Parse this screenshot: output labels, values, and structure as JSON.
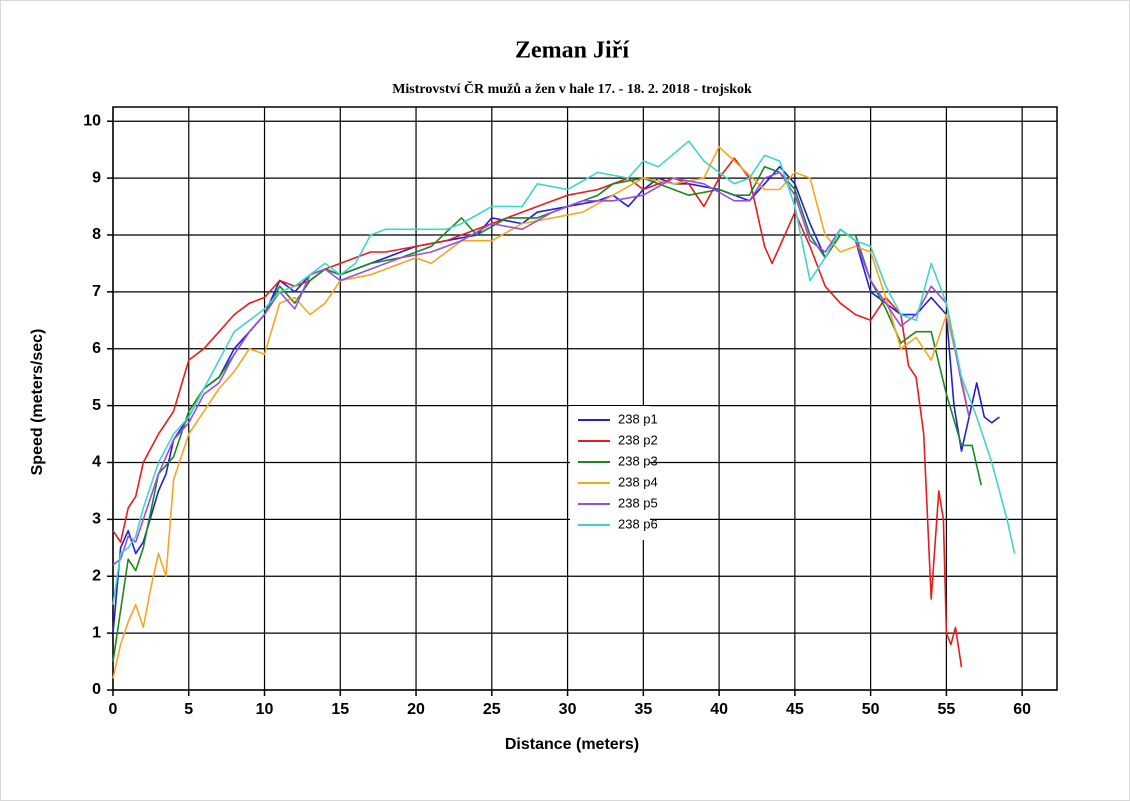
{
  "chart_data": {
    "type": "line",
    "title": "Zeman Jiří",
    "subtitle": "Mistrovství ČR mužů a žen v hale 17. - 18. 2. 2018 - trojskok",
    "x_label": "Distance (meters)",
    "y_label": "Speed (meters/sec)",
    "xlim": [
      0,
      62.3
    ],
    "ylim": [
      0,
      10.25
    ],
    "xticks": [
      0,
      5,
      10,
      15,
      20,
      25,
      30,
      35,
      40,
      45,
      50,
      55,
      60
    ],
    "yticks": [
      0,
      1,
      2,
      3,
      4,
      5,
      6,
      7,
      8,
      9,
      10
    ],
    "grid": true,
    "series": [
      {
        "name": "238 p1",
        "color": "#1f1fe0",
        "x": [
          0,
          0.5,
          1,
          1.5,
          2,
          3,
          3.5,
          4,
          5,
          6,
          7,
          8,
          9,
          10,
          11,
          12,
          13,
          14,
          15,
          17,
          18,
          20,
          22,
          24,
          25,
          27,
          28,
          30,
          32,
          33,
          34,
          35,
          36,
          37,
          38,
          40,
          42,
          43,
          44,
          45,
          46,
          47,
          48,
          49,
          50,
          51,
          52,
          53,
          54,
          55,
          55.5,
          56,
          56.5,
          57,
          57.5,
          58,
          58.5
        ],
        "values": [
          1.0,
          2.5,
          2.8,
          2.4,
          2.6,
          3.5,
          3.8,
          4.4,
          4.8,
          5.3,
          5.5,
          6.0,
          6.3,
          6.6,
          7.2,
          7.0,
          7.3,
          7.4,
          7.3,
          7.5,
          7.6,
          7.8,
          7.9,
          8.0,
          8.3,
          8.2,
          8.4,
          8.5,
          8.6,
          8.7,
          8.5,
          8.8,
          9.0,
          8.9,
          8.9,
          8.8,
          8.6,
          8.9,
          9.2,
          8.9,
          8.2,
          7.6,
          8.1,
          7.9,
          7.0,
          6.8,
          6.6,
          6.6,
          6.9,
          6.6,
          5.0,
          4.2,
          4.8,
          5.4,
          4.8,
          4.7,
          4.8
        ]
      },
      {
        "name": "238 p2",
        "color": "#e81c1c",
        "x": [
          0,
          0.5,
          1,
          1.5,
          2,
          3,
          4,
          5,
          6,
          7,
          8,
          9,
          10,
          11,
          12,
          13,
          14,
          15,
          17,
          18,
          20,
          22,
          24,
          26,
          28,
          30,
          32,
          34,
          35,
          37,
          38,
          39,
          40,
          41,
          42,
          43,
          43.5,
          44,
          45,
          46,
          47,
          48,
          49,
          50,
          51,
          52,
          52.5,
          53,
          53.5,
          54,
          54.5,
          54.8,
          55,
          55.3,
          55.6,
          56
        ],
        "values": [
          2.8,
          2.6,
          3.2,
          3.4,
          4.0,
          4.5,
          4.9,
          5.8,
          6.0,
          6.3,
          6.6,
          6.8,
          6.9,
          7.2,
          7.1,
          7.2,
          7.4,
          7.5,
          7.7,
          7.7,
          7.8,
          7.9,
          8.1,
          8.3,
          8.5,
          8.7,
          8.8,
          9.0,
          8.8,
          9.0,
          8.9,
          8.5,
          9.0,
          9.35,
          9.0,
          7.8,
          7.5,
          7.8,
          8.4,
          7.8,
          7.1,
          6.8,
          6.6,
          6.5,
          6.9,
          6.6,
          5.7,
          5.5,
          4.5,
          1.6,
          3.5,
          3.0,
          1.0,
          0.8,
          1.1,
          0.4
        ]
      },
      {
        "name": "238 p3",
        "color": "#1a8a1a",
        "x": [
          0,
          0.5,
          1,
          1.5,
          2,
          3,
          4,
          5,
          6,
          7,
          8,
          9,
          10,
          11,
          12,
          13,
          14,
          15,
          17,
          19,
          21,
          23,
          24,
          26,
          28,
          30,
          32,
          33,
          35,
          37,
          38,
          40,
          41,
          42,
          43,
          44,
          45,
          46,
          47,
          48,
          49,
          50,
          51,
          52,
          53,
          54,
          55,
          56,
          56.7,
          57.3
        ],
        "values": [
          0.5,
          1.4,
          2.3,
          2.1,
          2.5,
          3.8,
          4.1,
          4.9,
          5.3,
          5.5,
          5.9,
          6.3,
          6.6,
          7.1,
          6.8,
          7.2,
          7.4,
          7.3,
          7.5,
          7.6,
          7.8,
          8.3,
          8.0,
          8.3,
          8.3,
          8.5,
          8.7,
          8.9,
          9.0,
          8.8,
          8.7,
          8.8,
          8.7,
          8.7,
          9.2,
          9.1,
          8.8,
          8.0,
          7.6,
          8.0,
          8.0,
          7.2,
          6.7,
          6.1,
          6.3,
          6.3,
          5.2,
          4.3,
          4.3,
          3.6
        ]
      },
      {
        "name": "238 p4",
        "color": "#f5a623",
        "x": [
          0,
          0.5,
          1,
          1.5,
          2,
          2.5,
          3,
          3.5,
          4,
          5,
          6,
          7,
          8,
          9,
          10,
          11,
          12,
          13,
          14,
          15,
          17,
          19,
          20,
          21,
          23,
          25,
          27,
          29,
          31,
          33,
          35,
          37,
          39,
          40,
          41,
          43,
          44,
          45,
          46,
          47,
          48,
          49,
          50,
          51,
          52,
          53,
          54,
          55,
          56,
          56.5
        ],
        "values": [
          0.2,
          0.8,
          1.2,
          1.5,
          1.1,
          1.8,
          2.4,
          2.0,
          3.7,
          4.5,
          4.9,
          5.3,
          5.6,
          6.0,
          5.9,
          6.8,
          6.9,
          6.6,
          6.8,
          7.2,
          7.3,
          7.5,
          7.6,
          7.5,
          7.9,
          7.9,
          8.2,
          8.3,
          8.4,
          8.7,
          9.0,
          8.9,
          9.0,
          9.55,
          9.3,
          8.8,
          8.8,
          9.1,
          9.0,
          8.0,
          7.7,
          7.8,
          7.7,
          6.9,
          6.0,
          6.2,
          5.8,
          6.6,
          5.5,
          4.8
        ]
      },
      {
        "name": "238 p5",
        "color": "#9b4de0",
        "x": [
          0,
          0.5,
          1,
          1.5,
          2,
          3,
          4,
          5,
          6,
          7,
          8,
          9,
          10,
          11,
          12,
          13,
          14,
          15,
          17,
          19,
          21,
          23,
          25,
          27,
          29,
          31,
          33,
          35,
          37,
          39,
          41,
          42,
          43,
          44,
          45,
          46,
          47,
          48,
          49,
          50,
          51,
          52,
          53,
          54,
          55,
          56,
          56.5
        ],
        "values": [
          2.2,
          2.3,
          2.7,
          2.6,
          3.0,
          3.8,
          4.4,
          4.7,
          5.2,
          5.4,
          5.9,
          6.3,
          6.6,
          7.0,
          6.7,
          7.3,
          7.4,
          7.2,
          7.4,
          7.6,
          7.7,
          7.9,
          8.2,
          8.1,
          8.4,
          8.6,
          8.6,
          8.7,
          9.0,
          8.9,
          8.6,
          8.6,
          9.0,
          9.1,
          8.7,
          7.9,
          7.7,
          8.1,
          7.9,
          7.2,
          6.8,
          6.4,
          6.6,
          7.1,
          6.8,
          5.4,
          4.8
        ]
      },
      {
        "name": "238 p6",
        "color": "#3fd6c8",
        "x": [
          0,
          0.5,
          1,
          1.5,
          2,
          3,
          4,
          5,
          6,
          7,
          8,
          9,
          10,
          11,
          12,
          13,
          14,
          15,
          16,
          17,
          18,
          20,
          22,
          23,
          25,
          27,
          28,
          30,
          32,
          34,
          35,
          36,
          38,
          39,
          40,
          41,
          42,
          43,
          44,
          45,
          46,
          47,
          48,
          49,
          50,
          51,
          52,
          53,
          54,
          55,
          56,
          57,
          58,
          59,
          59.5
        ],
        "values": [
          1.5,
          2.4,
          2.5,
          2.7,
          3.2,
          4.0,
          4.5,
          4.8,
          5.3,
          5.8,
          6.3,
          6.5,
          6.7,
          7.0,
          7.1,
          7.3,
          7.5,
          7.3,
          7.5,
          8.0,
          8.1,
          8.1,
          8.1,
          8.2,
          8.5,
          8.5,
          8.9,
          8.8,
          9.1,
          9.0,
          9.3,
          9.2,
          9.65,
          9.3,
          9.1,
          8.9,
          9.0,
          9.4,
          9.3,
          8.5,
          7.2,
          7.6,
          8.1,
          7.9,
          7.8,
          7.1,
          6.6,
          6.5,
          7.5,
          6.8,
          5.5,
          4.8,
          4.0,
          3.0,
          2.4
        ]
      }
    ]
  }
}
